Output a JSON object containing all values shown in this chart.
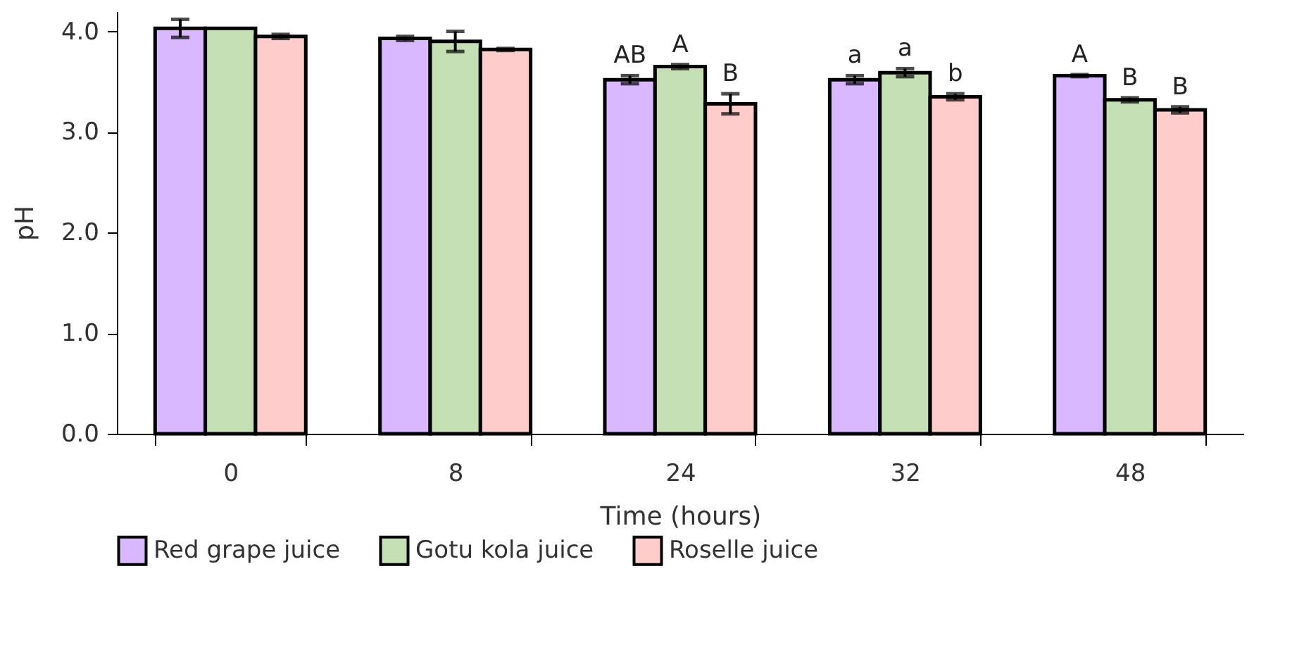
{
  "chart_data": {
    "type": "bar",
    "xlabel": "Time (hours)",
    "ylabel": "pH",
    "categories": [
      "0",
      "8",
      "24",
      "32",
      "48"
    ],
    "series": [
      {
        "name": "Red grape juice",
        "color": "#dab8ff",
        "values": [
          4.03,
          3.93,
          3.52,
          3.52,
          3.56
        ],
        "errors": [
          0.09,
          0.02,
          0.04,
          0.04,
          0.01
        ]
      },
      {
        "name": "Gotu kola juice",
        "color": "#c5e0b4",
        "values": [
          4.03,
          3.9,
          3.65,
          3.59,
          3.32
        ],
        "errors": [
          null,
          0.1,
          0.02,
          0.04,
          0.02
        ]
      },
      {
        "name": "Roselle juice",
        "color": "#ffcccc",
        "values": [
          3.95,
          3.82,
          3.28,
          3.35,
          3.22
        ],
        "errors": [
          0.02,
          0.01,
          0.1,
          0.03,
          0.03
        ]
      }
    ],
    "ylim": [
      0,
      4.2
    ],
    "yticks": [
      {
        "value": 0,
        "label": "0.0"
      },
      {
        "value": 1,
        "label": "1.0"
      },
      {
        "value": 2,
        "label": "2.0"
      },
      {
        "value": 3,
        "label": "3.0"
      },
      {
        "value": 4,
        "label": "4.0"
      }
    ],
    "grid": false,
    "legend": "bottom",
    "annotations": [
      "AB",
      "A",
      "B",
      "a",
      "a",
      "b",
      "A",
      "B",
      "B"
    ]
  }
}
